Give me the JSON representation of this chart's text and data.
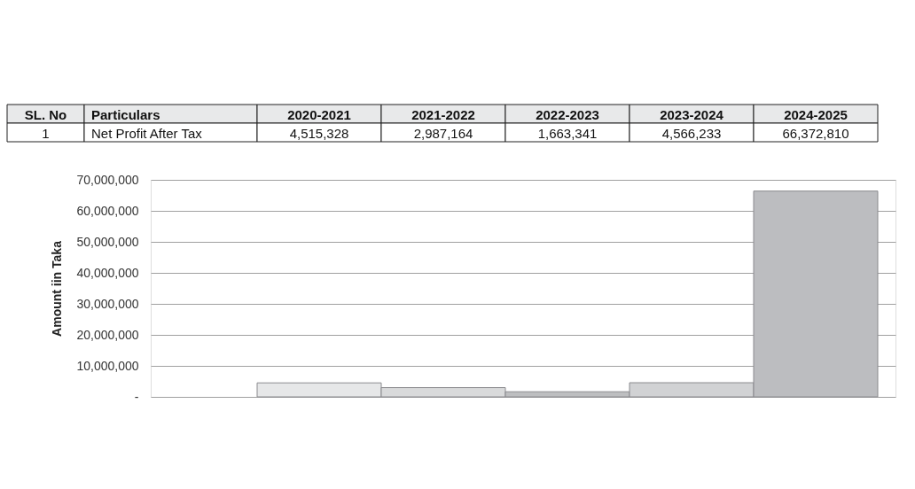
{
  "chart_data": {
    "type": "bar",
    "ylabel": "Amount iin Taka",
    "categories": [
      "2020-2021",
      "2021-2022",
      "2022-2023",
      "2023-2024",
      "2024-2025"
    ],
    "values": [
      4515328,
      2987164,
      1663341,
      4566233,
      66372810
    ],
    "value_labels": [
      "4,515,328",
      "2,987,164",
      "1,663,341",
      "4,566,233",
      "66,372,810"
    ],
    "colors": [
      "#e6e7e8",
      "#d9dadb",
      "#bdbec0",
      "#d1d2d4",
      "#bcbdc0"
    ],
    "ylim": [
      0,
      70000000
    ],
    "yticks": [
      {
        "value": 0,
        "label": "-"
      },
      {
        "value": 10000000,
        "label": "10,000,000"
      },
      {
        "value": 20000000,
        "label": "20,000,000"
      },
      {
        "value": 30000000,
        "label": "30,000,000"
      },
      {
        "value": 40000000,
        "label": "40,000,000"
      },
      {
        "value": 50000000,
        "label": "50,000,000"
      },
      {
        "value": 60000000,
        "label": "60,000,000"
      },
      {
        "value": 70000000,
        "label": "70,000,000"
      }
    ],
    "annotations": [
      "SL. No",
      "Particulars",
      "1",
      "Net Profit After Tax"
    ],
    "grid": "y",
    "legend": false,
    "tick_labels": "y"
  }
}
